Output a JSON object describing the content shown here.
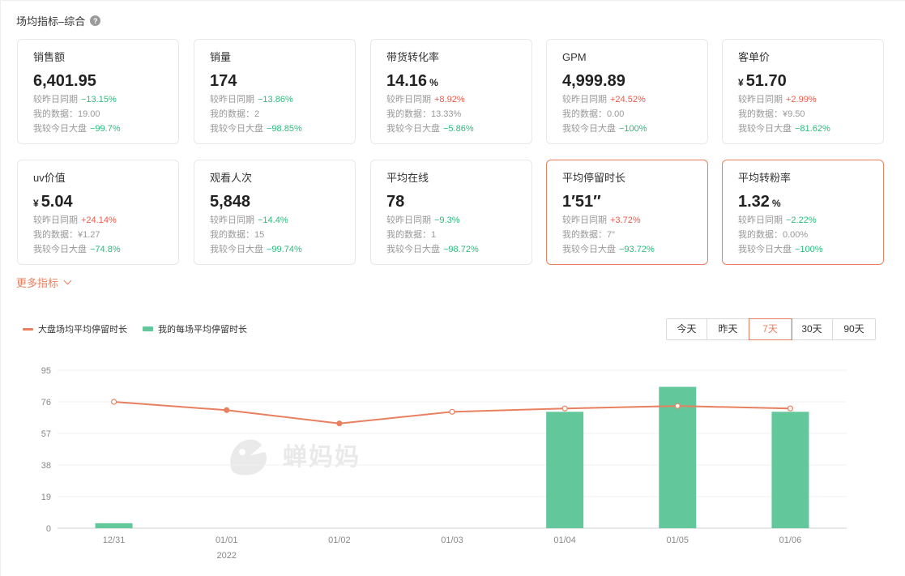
{
  "section": {
    "title": "场均指标–综合",
    "help_icon": "question-circle-icon"
  },
  "cards": [
    {
      "label": "销售额",
      "currency": "",
      "value": "6,401.95",
      "unit": "",
      "compare_label": "较昨日同期",
      "compare_value": "−13.15%",
      "compare_dir": "down",
      "mine_label": "我的数据：",
      "mine_value": "19.00",
      "market_label": "我较今日大盘",
      "market_value": "−99.7%",
      "market_dir": "down",
      "highlight": false
    },
    {
      "label": "销量",
      "currency": "",
      "value": "174",
      "unit": "",
      "compare_label": "较昨日同期",
      "compare_value": "−13.86%",
      "compare_dir": "down",
      "mine_label": "我的数据：",
      "mine_value": "2",
      "market_label": "我较今日大盘",
      "market_value": "−98.85%",
      "market_dir": "down",
      "highlight": false
    },
    {
      "label": "带货转化率",
      "currency": "",
      "value": "14.16",
      "unit": "%",
      "compare_label": "较昨日同期",
      "compare_value": "+8.92%",
      "compare_dir": "up",
      "mine_label": "我的数据：",
      "mine_value": "13.33%",
      "market_label": "我较今日大盘",
      "market_value": "−5.86%",
      "market_dir": "down",
      "highlight": false
    },
    {
      "label": "GPM",
      "currency": "",
      "value": "4,999.89",
      "unit": "",
      "compare_label": "较昨日同期",
      "compare_value": "+24.52%",
      "compare_dir": "up",
      "mine_label": "我的数据：",
      "mine_value": "0.00",
      "market_label": "我较今日大盘",
      "market_value": "−100%",
      "market_dir": "down",
      "highlight": false
    },
    {
      "label": "客单价",
      "currency": "¥",
      "value": "51.70",
      "unit": "",
      "compare_label": "较昨日同期",
      "compare_value": "+2.99%",
      "compare_dir": "up",
      "mine_label": "我的数据：",
      "mine_value": "¥9.50",
      "market_label": "我较今日大盘",
      "market_value": "−81.62%",
      "market_dir": "down",
      "highlight": false
    },
    {
      "label": "uv价值",
      "currency": "¥",
      "value": "5.04",
      "unit": "",
      "compare_label": "较昨日同期",
      "compare_value": "+24.14%",
      "compare_dir": "up",
      "mine_label": "我的数据：",
      "mine_value": "¥1.27",
      "market_label": "我较今日大盘",
      "market_value": "−74.8%",
      "market_dir": "down",
      "highlight": false
    },
    {
      "label": "观看人次",
      "currency": "",
      "value": "5,848",
      "unit": "",
      "compare_label": "较昨日同期",
      "compare_value": "−14.4%",
      "compare_dir": "down",
      "mine_label": "我的数据：",
      "mine_value": "15",
      "market_label": "我较今日大盘",
      "market_value": "−99.74%",
      "market_dir": "down",
      "highlight": false
    },
    {
      "label": "平均在线",
      "currency": "",
      "value": "78",
      "unit": "",
      "compare_label": "较昨日同期",
      "compare_value": "−9.3%",
      "compare_dir": "down",
      "mine_label": "我的数据：",
      "mine_value": "1",
      "market_label": "我较今日大盘",
      "market_value": "−98.72%",
      "market_dir": "down",
      "highlight": false
    },
    {
      "label": "平均停留时长",
      "currency": "",
      "value": "1′51″",
      "unit": "",
      "compare_label": "较昨日同期",
      "compare_value": "+3.72%",
      "compare_dir": "up",
      "mine_label": "我的数据：",
      "mine_value": "7″",
      "market_label": "我较今日大盘",
      "market_value": "−93.72%",
      "market_dir": "down",
      "highlight": true
    },
    {
      "label": "平均转粉率",
      "currency": "",
      "value": "1.32",
      "unit": "%",
      "compare_label": "较昨日同期",
      "compare_value": "−2.22%",
      "compare_dir": "down",
      "mine_label": "我的数据：",
      "mine_value": "0.00%",
      "market_label": "我较今日大盘",
      "market_value": "−100%",
      "market_dir": "down",
      "highlight": true
    }
  ],
  "more_metrics": {
    "label": "更多指标",
    "icon": "chevron-down-icon"
  },
  "legend": {
    "line_label": "大盘场均平均停留时长",
    "bar_label": "我的每场平均停留时长"
  },
  "range_buttons": [
    {
      "label": "今天",
      "active": false
    },
    {
      "label": "昨天",
      "active": false
    },
    {
      "label": "7天",
      "active": true
    },
    {
      "label": "30天",
      "active": false
    },
    {
      "label": "90天",
      "active": false
    }
  ],
  "watermark": {
    "text": "蝉妈妈",
    "icon": "chanmama-logo-icon"
  },
  "colors": {
    "accent": "#e8805f",
    "up": "#ee5a4a",
    "down": "#2cba7c",
    "bar": "#62c89b",
    "line": "#e8805f"
  },
  "chart_data": {
    "type": "bar",
    "categories": [
      "12/31",
      "01/01",
      "01/02",
      "01/03",
      "01/04",
      "01/05",
      "01/06"
    ],
    "year_label": "2022",
    "year_label_under": "01/01",
    "yticks": [
      0,
      19,
      38,
      57,
      76,
      95
    ],
    "ylim": [
      0,
      95
    ],
    "grid": true,
    "legend_position": "top-left",
    "series": [
      {
        "name": "大盘场均平均停留时长",
        "kind": "line",
        "values": [
          76,
          71,
          63,
          70,
          72,
          73.5,
          72
        ]
      },
      {
        "name": "我的每场平均停留时长",
        "kind": "bar",
        "values": [
          3,
          0,
          0,
          0,
          70,
          85,
          70
        ]
      }
    ]
  }
}
